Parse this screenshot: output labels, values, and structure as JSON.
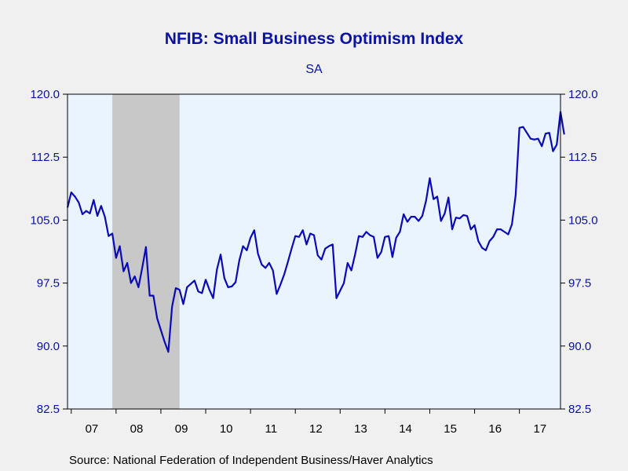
{
  "title": "NFIB: Small Business Optimism Index",
  "subtitle": "SA",
  "source": "Source:  National Federation of Independent Business/Haver Analytics",
  "colors": {
    "line": "#0a0ab8",
    "plot_bg": "#eaf4ff",
    "recession": "#c8c8c8",
    "text": "#0a12a8"
  },
  "chart_data": {
    "type": "line",
    "title": "NFIB: Small Business Optimism Index",
    "subtitle": "SA",
    "x_axis": {
      "tick_labels": [
        "07",
        "08",
        "09",
        "10",
        "11",
        "12",
        "13",
        "14",
        "15",
        "16",
        "17"
      ],
      "range": [
        "2006-12",
        "2017-12"
      ]
    },
    "y_axis": {
      "range": [
        82.5,
        120.0
      ],
      "ticks": [
        "120.0",
        "112.5",
        "105.0",
        "97.5",
        "90.0",
        "82.5"
      ],
      "ticks_both_sides": true
    },
    "shaded_regions": [
      {
        "label": "recession",
        "start": "2007-12",
        "end": "2009-06"
      }
    ],
    "grid": false,
    "series": [
      {
        "start": "2006-12",
        "frequency": "monthly",
        "values": [
          106.5,
          108.3,
          107.8,
          107.1,
          105.7,
          106.1,
          105.8,
          107.4,
          105.5,
          106.7,
          105.4,
          103.1,
          103.4,
          100.5,
          101.9,
          98.9,
          99.9,
          97.5,
          98.3,
          97.0,
          99.3,
          101.8,
          96.0,
          96.0,
          93.3,
          91.9,
          90.5,
          89.3,
          94.7,
          96.9,
          96.7,
          95.0,
          97.0,
          97.4,
          97.8,
          96.5,
          96.3,
          97.9,
          96.7,
          95.7,
          99.1,
          100.9,
          98.1,
          97.0,
          97.1,
          97.6,
          100.2,
          101.9,
          101.4,
          102.9,
          103.8,
          101.0,
          99.7,
          99.3,
          99.9,
          99.0,
          96.2,
          97.3,
          98.5,
          100.0,
          101.6,
          103.1,
          103.0,
          103.8,
          102.1,
          103.4,
          103.2,
          100.8,
          100.3,
          101.6,
          101.9,
          102.1,
          95.7,
          96.6,
          97.5,
          99.9,
          99.0,
          100.9,
          103.1,
          103.0,
          103.6,
          103.2,
          103.0,
          100.5,
          101.2,
          103.0,
          103.1,
          100.6,
          102.9,
          103.6,
          105.7,
          104.8,
          105.4,
          105.4,
          104.9,
          105.5,
          107.3,
          110.0,
          107.5,
          107.8,
          104.9,
          105.8,
          107.7,
          103.9,
          105.3,
          105.2,
          105.6,
          105.5,
          103.9,
          104.4,
          102.5,
          101.7,
          101.4,
          102.5,
          103.0,
          103.9,
          103.9,
          103.6,
          103.3,
          104.5,
          108.0,
          116.0,
          116.1,
          115.4,
          114.7,
          114.6,
          114.7,
          113.8,
          115.3,
          115.4,
          113.2,
          114.0,
          117.9,
          115.2
        ]
      }
    ]
  }
}
